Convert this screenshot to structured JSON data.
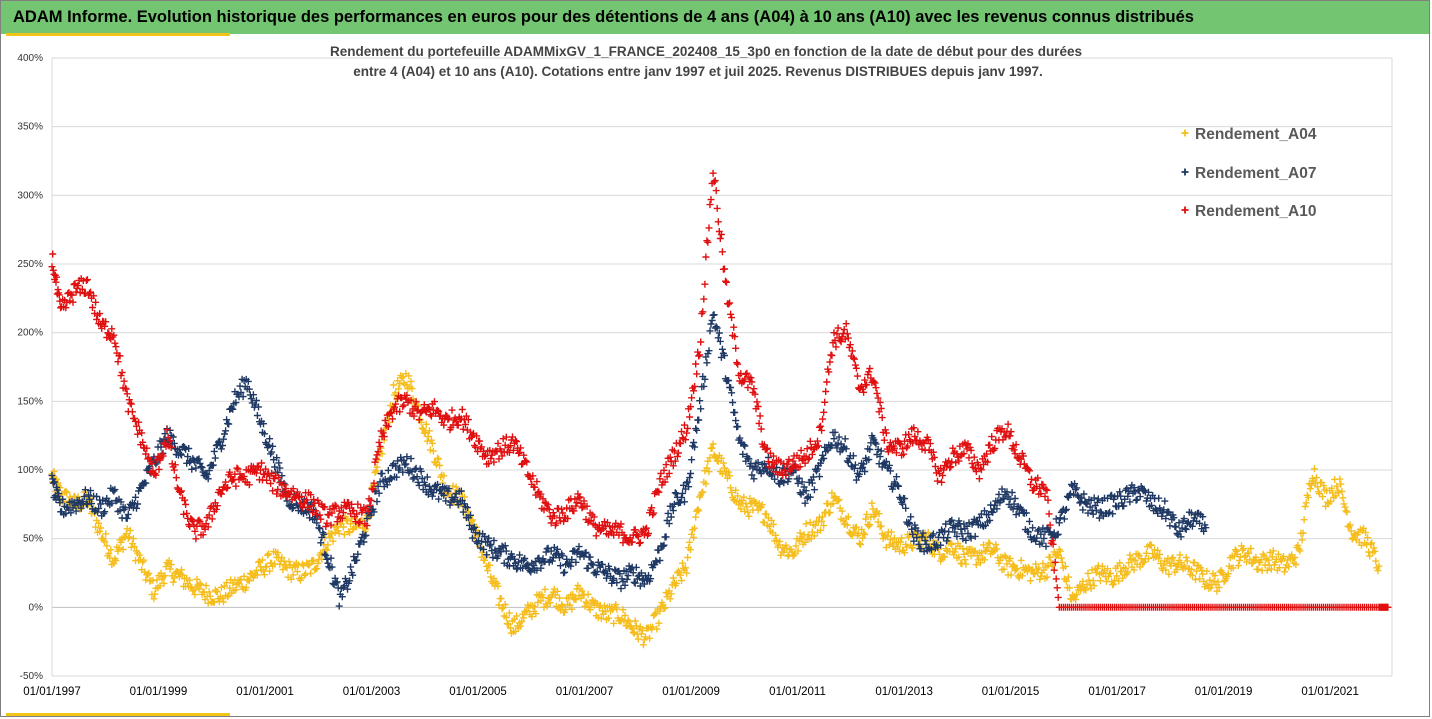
{
  "banner": {
    "title": "ADAM Informe. Evolution historique des performances en euros pour des détentions de 4 ans (A04) à 10 ans (A10) avec les revenus connus distribués"
  },
  "colors": {
    "banner": "#73c572",
    "accent": "#f0c419",
    "A04": "#f5be1e",
    "A07": "#1f3864",
    "A10": "#e01010"
  },
  "chart_data": {
    "type": "scatter",
    "subtitle_line1": "Rendement du portefeuille ADAMMixGV_1_FRANCE_202408_15_3p0  en fonction de la date de début pour des durées",
    "subtitle_line2": "entre 4 (A04) et 10 ans (A10). Cotations  entre janv 1997 et juil 2025. Revenus DISTRIBUES depuis janv 1997.",
    "xlabel": "",
    "ylabel": "",
    "xlim": [
      "1997-01-01",
      "2022-03-01"
    ],
    "ylim": [
      -50,
      400
    ],
    "y_ticks": [
      "-50%",
      "0%",
      "50%",
      "100%",
      "150%",
      "200%",
      "250%",
      "300%",
      "350%",
      "400%"
    ],
    "x_ticks": [
      "01/01/1997",
      "01/01/1999",
      "01/01/2001",
      "01/01/2003",
      "01/01/2005",
      "01/01/2007",
      "01/01/2009",
      "01/01/2011",
      "01/01/2013",
      "01/01/2015",
      "01/01/2017",
      "01/01/2019",
      "01/01/2021"
    ],
    "grid": "horizontal",
    "legend_position": "top-right",
    "marker": "+",
    "series": [
      {
        "name": "Rendement_A04",
        "color": "#f5be1e",
        "points": [
          [
            "1997-01",
            95
          ],
          [
            "1997-03",
            82
          ],
          [
            "1997-06",
            75
          ],
          [
            "1997-09",
            78
          ],
          [
            "1997-12",
            55
          ],
          [
            "1998-03",
            35
          ],
          [
            "1998-06",
            55
          ],
          [
            "1998-09",
            32
          ],
          [
            "1998-12",
            12
          ],
          [
            "1999-03",
            28
          ],
          [
            "1999-06",
            22
          ],
          [
            "1999-09",
            15
          ],
          [
            "1999-12",
            10
          ],
          [
            "2000-03",
            8
          ],
          [
            "2000-06",
            15
          ],
          [
            "2000-09",
            20
          ],
          [
            "2000-12",
            28
          ],
          [
            "2001-03",
            35
          ],
          [
            "2001-06",
            28
          ],
          [
            "2001-09",
            25
          ],
          [
            "2001-12",
            30
          ],
          [
            "2002-03",
            48
          ],
          [
            "2002-06",
            60
          ],
          [
            "2002-09",
            58
          ],
          [
            "2002-12",
            62
          ],
          [
            "2003-03",
            110
          ],
          [
            "2003-06",
            155
          ],
          [
            "2003-09",
            168
          ],
          [
            "2003-12",
            140
          ],
          [
            "2004-03",
            115
          ],
          [
            "2004-06",
            85
          ],
          [
            "2004-09",
            80
          ],
          [
            "2004-12",
            60
          ],
          [
            "2005-03",
            30
          ],
          [
            "2005-06",
            5
          ],
          [
            "2005-09",
            -15
          ],
          [
            "2005-12",
            -5
          ],
          [
            "2006-03",
            5
          ],
          [
            "2006-06",
            10
          ],
          [
            "2006-09",
            0
          ],
          [
            "2006-12",
            12
          ],
          [
            "2007-03",
            0
          ],
          [
            "2007-06",
            -5
          ],
          [
            "2007-09",
            -5
          ],
          [
            "2007-12",
            -15
          ],
          [
            "2008-03",
            -22
          ],
          [
            "2008-06",
            -5
          ],
          [
            "2008-09",
            15
          ],
          [
            "2008-12",
            30
          ],
          [
            "2009-03",
            80
          ],
          [
            "2009-06",
            115
          ],
          [
            "2009-09",
            95
          ],
          [
            "2009-12",
            75
          ],
          [
            "2010-03",
            72
          ],
          [
            "2010-06",
            68
          ],
          [
            "2010-09",
            45
          ],
          [
            "2010-12",
            40
          ],
          [
            "2011-03",
            55
          ],
          [
            "2011-06",
            60
          ],
          [
            "2011-09",
            80
          ],
          [
            "2011-12",
            65
          ],
          [
            "2012-03",
            50
          ],
          [
            "2012-06",
            72
          ],
          [
            "2012-09",
            50
          ],
          [
            "2012-12",
            45
          ],
          [
            "2013-03",
            48
          ],
          [
            "2013-06",
            50
          ],
          [
            "2013-09",
            40
          ],
          [
            "2013-12",
            45
          ],
          [
            "2014-03",
            35
          ],
          [
            "2014-06",
            38
          ],
          [
            "2014-09",
            42
          ],
          [
            "2014-12",
            30
          ],
          [
            "2015-03",
            28
          ],
          [
            "2015-06",
            25
          ],
          [
            "2015-09",
            28
          ],
          [
            "2015-12",
            40
          ],
          [
            "2016-03",
            5
          ],
          [
            "2016-06",
            18
          ],
          [
            "2016-09",
            25
          ],
          [
            "2016-12",
            22
          ],
          [
            "2017-03",
            30
          ],
          [
            "2017-06",
            35
          ],
          [
            "2017-09",
            40
          ],
          [
            "2017-12",
            30
          ],
          [
            "2018-03",
            32
          ],
          [
            "2018-06",
            28
          ],
          [
            "2018-09",
            20
          ],
          [
            "2018-12",
            18
          ],
          [
            "2019-03",
            35
          ],
          [
            "2019-06",
            40
          ],
          [
            "2019-09",
            32
          ],
          [
            "2019-12",
            35
          ],
          [
            "2020-03",
            30
          ],
          [
            "2020-06",
            40
          ],
          [
            "2020-09",
            100
          ],
          [
            "2020-12",
            80
          ],
          [
            "2021-03",
            90
          ],
          [
            "2021-06",
            55
          ],
          [
            "2021-09",
            50
          ],
          [
            "2021-12",
            30
          ]
        ]
      },
      {
        "name": "Rendement_A07",
        "color": "#1f3864",
        "points": [
          [
            "1997-01",
            90
          ],
          [
            "1997-03",
            72
          ],
          [
            "1997-06",
            75
          ],
          [
            "1997-09",
            80
          ],
          [
            "1997-12",
            72
          ],
          [
            "1998-03",
            82
          ],
          [
            "1998-06",
            65
          ],
          [
            "1998-09",
            85
          ],
          [
            "1998-12",
            105
          ],
          [
            "1999-03",
            125
          ],
          [
            "1999-06",
            115
          ],
          [
            "1999-09",
            105
          ],
          [
            "1999-12",
            95
          ],
          [
            "2000-03",
            120
          ],
          [
            "2000-06",
            150
          ],
          [
            "2000-09",
            165
          ],
          [
            "2000-12",
            135
          ],
          [
            "2001-03",
            110
          ],
          [
            "2001-06",
            80
          ],
          [
            "2001-09",
            75
          ],
          [
            "2001-12",
            70
          ],
          [
            "2002-03",
            40
          ],
          [
            "2002-06",
            5
          ],
          [
            "2002-09",
            30
          ],
          [
            "2002-12",
            60
          ],
          [
            "2003-03",
            90
          ],
          [
            "2003-06",
            100
          ],
          [
            "2003-09",
            105
          ],
          [
            "2003-12",
            95
          ],
          [
            "2004-03",
            85
          ],
          [
            "2004-06",
            80
          ],
          [
            "2004-09",
            80
          ],
          [
            "2004-12",
            55
          ],
          [
            "2005-03",
            45
          ],
          [
            "2005-06",
            40
          ],
          [
            "2005-09",
            35
          ],
          [
            "2005-12",
            30
          ],
          [
            "2006-03",
            35
          ],
          [
            "2006-06",
            38
          ],
          [
            "2006-09",
            30
          ],
          [
            "2006-12",
            40
          ],
          [
            "2007-03",
            30
          ],
          [
            "2007-06",
            25
          ],
          [
            "2007-09",
            20
          ],
          [
            "2007-12",
            25
          ],
          [
            "2008-03",
            20
          ],
          [
            "2008-06",
            40
          ],
          [
            "2008-09",
            75
          ],
          [
            "2008-12",
            85
          ],
          [
            "2009-03",
            145
          ],
          [
            "2009-06",
            215
          ],
          [
            "2009-09",
            170
          ],
          [
            "2009-12",
            120
          ],
          [
            "2010-03",
            100
          ],
          [
            "2010-06",
            105
          ],
          [
            "2010-09",
            95
          ],
          [
            "2010-12",
            100
          ],
          [
            "2011-03",
            80
          ],
          [
            "2011-06",
            100
          ],
          [
            "2011-09",
            125
          ],
          [
            "2011-12",
            115
          ],
          [
            "2012-03",
            95
          ],
          [
            "2012-06",
            120
          ],
          [
            "2012-09",
            100
          ],
          [
            "2012-12",
            85
          ],
          [
            "2013-03",
            55
          ],
          [
            "2013-06",
            45
          ],
          [
            "2013-09",
            50
          ],
          [
            "2013-12",
            58
          ],
          [
            "2014-03",
            55
          ],
          [
            "2014-06",
            60
          ],
          [
            "2014-09",
            70
          ],
          [
            "2014-12",
            85
          ],
          [
            "2015-03",
            70
          ],
          [
            "2015-06",
            55
          ],
          [
            "2015-09",
            50
          ],
          [
            "2015-12",
            60
          ],
          [
            "2016-03",
            85
          ],
          [
            "2016-06",
            75
          ],
          [
            "2016-09",
            72
          ],
          [
            "2016-12",
            75
          ],
          [
            "2017-03",
            80
          ],
          [
            "2017-06",
            85
          ],
          [
            "2017-09",
            75
          ],
          [
            "2017-12",
            70
          ],
          [
            "2018-03",
            55
          ],
          [
            "2018-06",
            65
          ],
          [
            "2018-09",
            58
          ]
        ]
      },
      {
        "name": "Rendement_A10",
        "color": "#e01010",
        "points": [
          [
            "1997-01",
            255
          ],
          [
            "1997-03",
            215
          ],
          [
            "1997-06",
            230
          ],
          [
            "1997-09",
            235
          ],
          [
            "1997-12",
            205
          ],
          [
            "1998-03",
            200
          ],
          [
            "1998-06",
            150
          ],
          [
            "1998-09",
            125
          ],
          [
            "1998-12",
            95
          ],
          [
            "1999-03",
            125
          ],
          [
            "1999-06",
            80
          ],
          [
            "1999-09",
            55
          ],
          [
            "1999-12",
            60
          ],
          [
            "2000-03",
            85
          ],
          [
            "2000-06",
            95
          ],
          [
            "2000-09",
            95
          ],
          [
            "2000-12",
            100
          ],
          [
            "2001-03",
            90
          ],
          [
            "2001-06",
            85
          ],
          [
            "2001-09",
            80
          ],
          [
            "2001-12",
            75
          ],
          [
            "2002-03",
            65
          ],
          [
            "2002-06",
            70
          ],
          [
            "2002-09",
            70
          ],
          [
            "2002-12",
            65
          ],
          [
            "2003-03",
            120
          ],
          [
            "2003-06",
            145
          ],
          [
            "2003-09",
            150
          ],
          [
            "2003-12",
            140
          ],
          [
            "2004-03",
            145
          ],
          [
            "2004-06",
            135
          ],
          [
            "2004-09",
            140
          ],
          [
            "2004-12",
            125
          ],
          [
            "2005-03",
            110
          ],
          [
            "2005-06",
            115
          ],
          [
            "2005-09",
            120
          ],
          [
            "2005-12",
            100
          ],
          [
            "2006-03",
            80
          ],
          [
            "2006-06",
            65
          ],
          [
            "2006-09",
            70
          ],
          [
            "2006-12",
            80
          ],
          [
            "2007-03",
            60
          ],
          [
            "2007-06",
            55
          ],
          [
            "2007-09",
            55
          ],
          [
            "2007-12",
            50
          ],
          [
            "2008-03",
            55
          ],
          [
            "2008-06",
            90
          ],
          [
            "2008-09",
            110
          ],
          [
            "2008-12",
            130
          ],
          [
            "2009-03",
            190
          ],
          [
            "2009-06",
            320
          ],
          [
            "2009-09",
            230
          ],
          [
            "2009-12",
            170
          ],
          [
            "2010-03",
            160
          ],
          [
            "2010-06",
            110
          ],
          [
            "2010-09",
            100
          ],
          [
            "2010-12",
            105
          ],
          [
            "2011-03",
            110
          ],
          [
            "2011-06",
            125
          ],
          [
            "2011-09",
            195
          ],
          [
            "2011-12",
            200
          ],
          [
            "2012-03",
            160
          ],
          [
            "2012-06",
            170
          ],
          [
            "2012-09",
            120
          ],
          [
            "2012-12",
            115
          ],
          [
            "2013-03",
            125
          ],
          [
            "2013-06",
            120
          ],
          [
            "2013-09",
            95
          ],
          [
            "2013-12",
            110
          ],
          [
            "2014-03",
            115
          ],
          [
            "2014-06",
            100
          ],
          [
            "2014-09",
            120
          ],
          [
            "2014-12",
            130
          ],
          [
            "2015-03",
            110
          ],
          [
            "2015-06",
            90
          ],
          [
            "2015-09",
            85
          ],
          [
            "2015-12",
            0
          ],
          [
            "2016-06",
            0
          ],
          [
            "2016-12",
            0
          ],
          [
            "2017-06",
            0
          ],
          [
            "2017-12",
            0
          ],
          [
            "2018-06",
            0
          ],
          [
            "2018-12",
            0
          ],
          [
            "2019-06",
            0
          ],
          [
            "2019-12",
            0
          ],
          [
            "2020-06",
            0
          ],
          [
            "2020-12",
            0
          ],
          [
            "2021-06",
            0
          ],
          [
            "2021-12",
            0
          ],
          [
            "2022-02",
            0
          ]
        ]
      }
    ]
  }
}
